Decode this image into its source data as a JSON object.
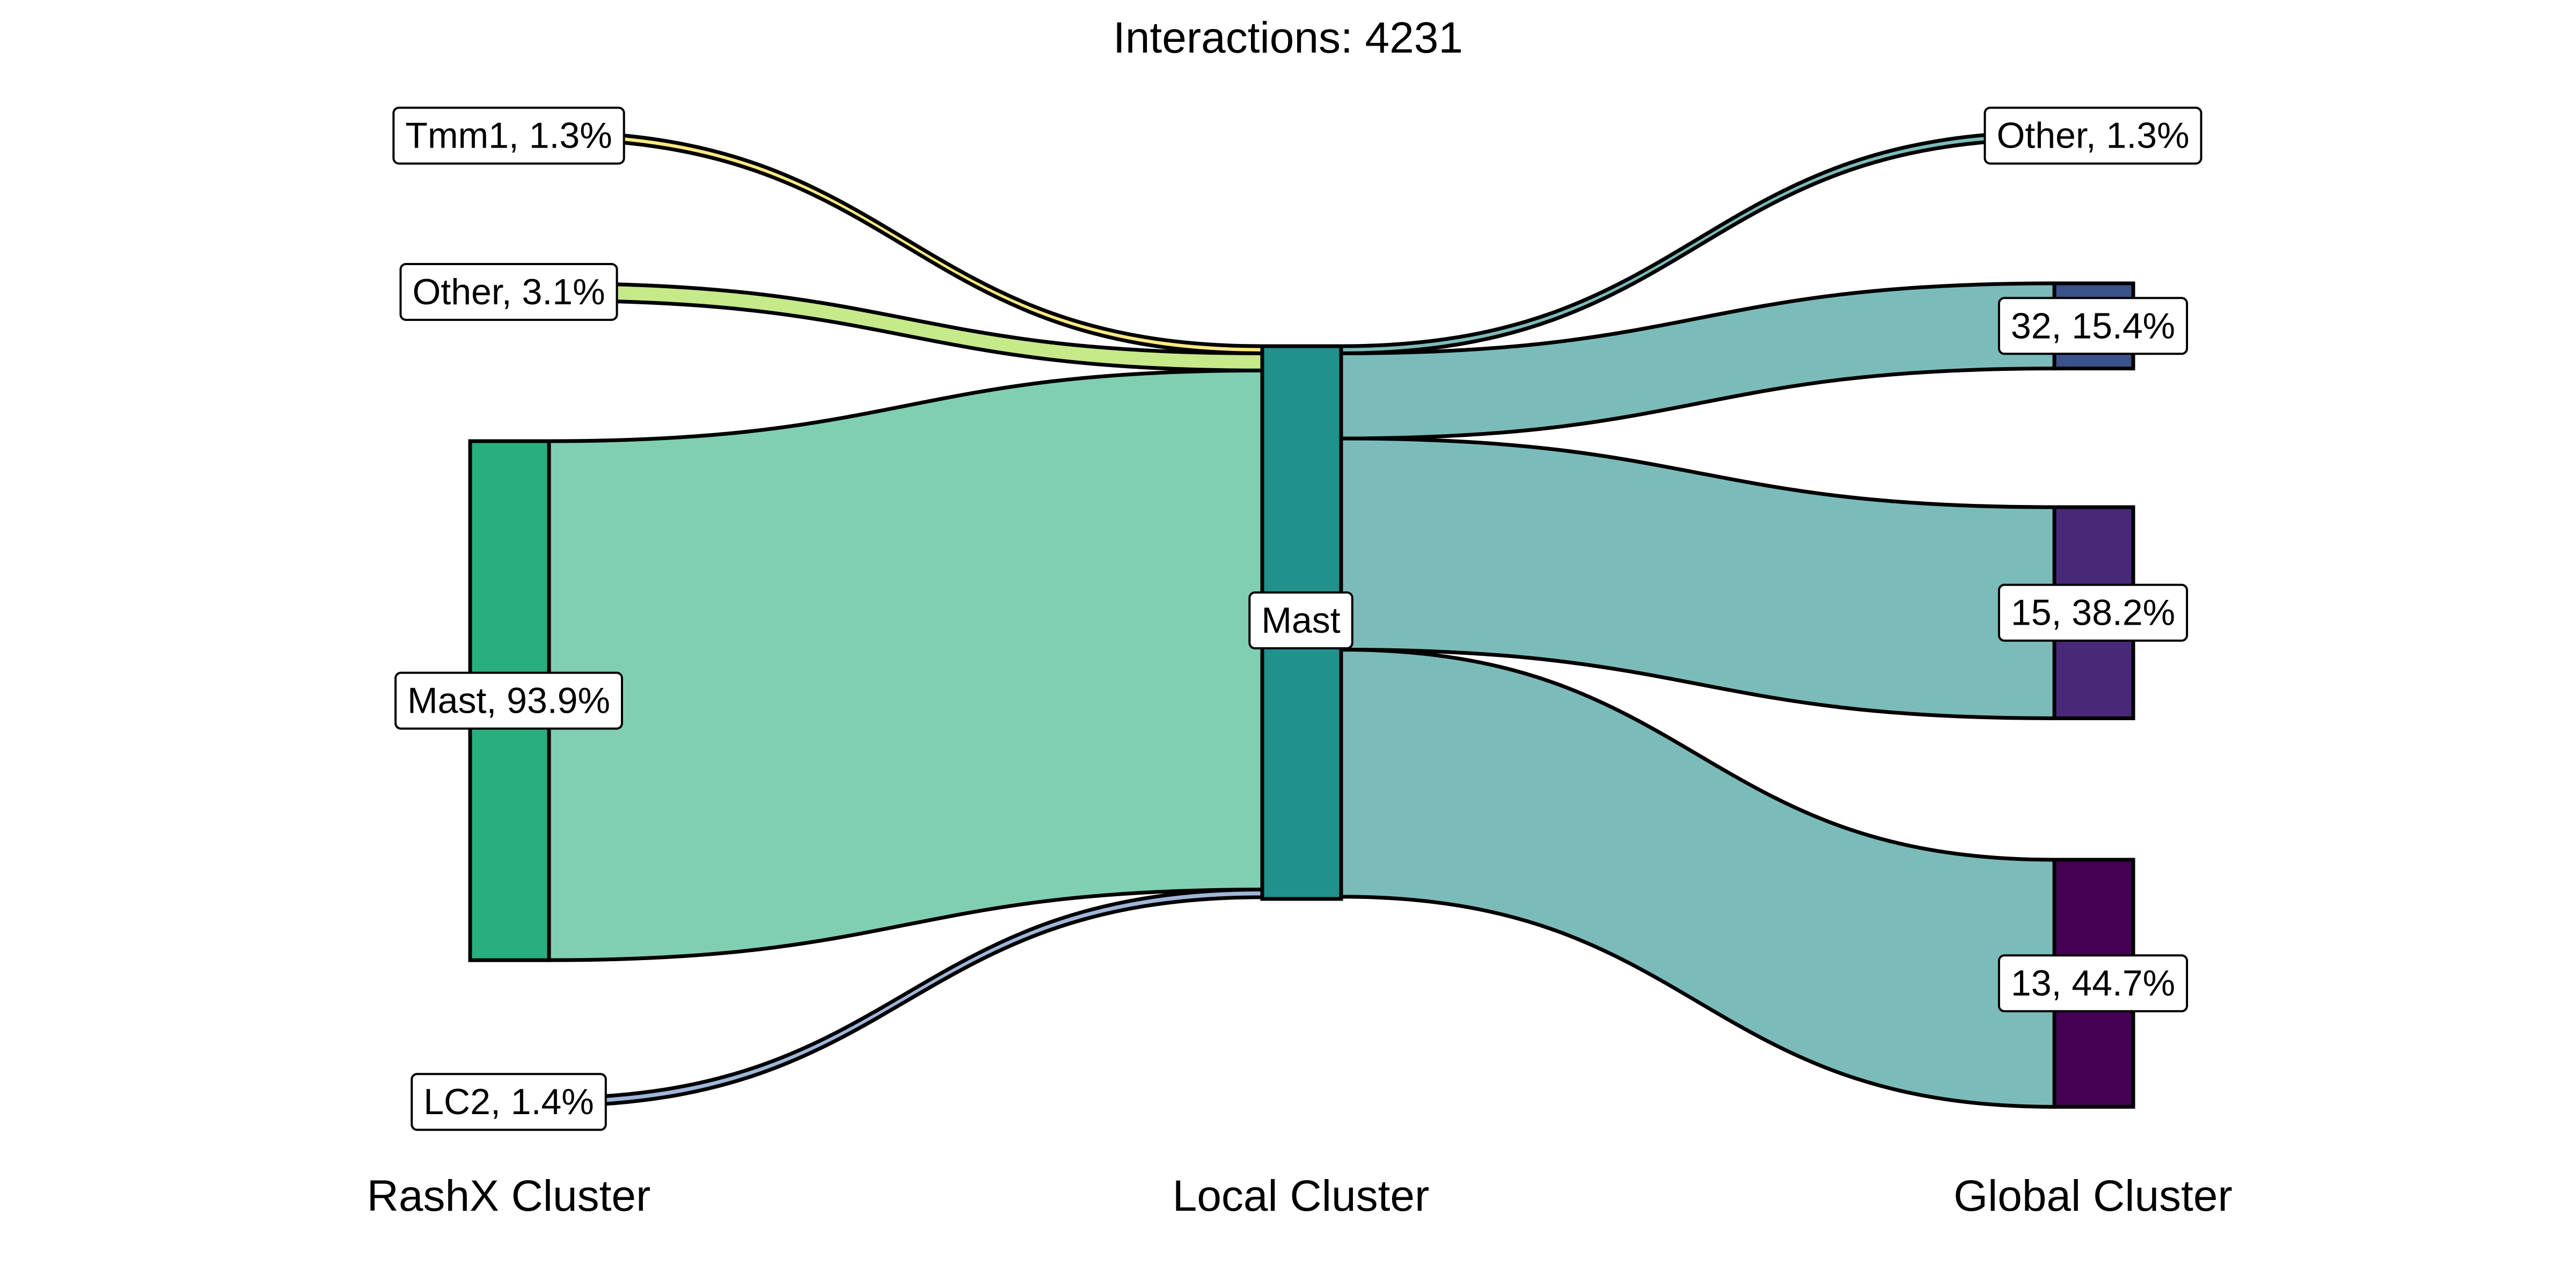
{
  "chart_data": {
    "type": "sankey",
    "title": "Interactions: 4231",
    "axes": [
      "RashX Cluster",
      "Local Cluster",
      "Global Cluster"
    ],
    "nodes": {
      "rashx": [
        {
          "key": "tmm1",
          "label": "Tmm1, 1.3%",
          "percent": 1.3,
          "color": "#fde725"
        },
        {
          "key": "other",
          "label": "Other, 3.1%",
          "percent": 3.1,
          "color": "#a0da39"
        },
        {
          "key": "mast",
          "label": "Mast, 93.9%",
          "percent": 93.9,
          "color": "#29af7f"
        },
        {
          "key": "lc2",
          "label": "LC2, 1.4%",
          "percent": 1.4,
          "color": "#3e4a89"
        }
      ],
      "local": [
        {
          "key": "mast",
          "label": "Mast",
          "percent": 100,
          "color": "#21918c"
        }
      ],
      "global": [
        {
          "key": "other",
          "label": "Other, 1.3%",
          "percent": 1.3,
          "color": "#5ec962"
        },
        {
          "key": "g32",
          "label": "32, 15.4%",
          "percent": 15.4,
          "color": "#3b528b"
        },
        {
          "key": "g15",
          "label": "15, 38.2%",
          "percent": 38.2,
          "color": "#482878"
        },
        {
          "key": "g13",
          "label": "13, 44.7%",
          "percent": 44.7,
          "color": "#440154"
        }
      ]
    },
    "flows_in": [
      {
        "from": "tmm1",
        "to": "mast",
        "percent": 1.3,
        "color": "#fde981"
      },
      {
        "from": "other",
        "to": "mast",
        "percent": 3.1,
        "color": "#c6e98a"
      },
      {
        "from": "mast",
        "to": "mast",
        "percent": 93.9,
        "color": "#80cfb3"
      },
      {
        "from": "lc2",
        "to": "mast",
        "percent": 1.4,
        "color": "#9fb6d9"
      }
    ],
    "flows_out": [
      {
        "from": "mast",
        "to": "other",
        "percent": 1.3,
        "color": "#7bbcba"
      },
      {
        "from": "mast",
        "to": "g32",
        "percent": 15.4,
        "color": "#7bbcba"
      },
      {
        "from": "mast",
        "to": "g15",
        "percent": 38.2,
        "color": "#7bbcba"
      },
      {
        "from": "mast",
        "to": "g13",
        "percent": 44.7,
        "color": "#7bbcba"
      }
    ]
  }
}
